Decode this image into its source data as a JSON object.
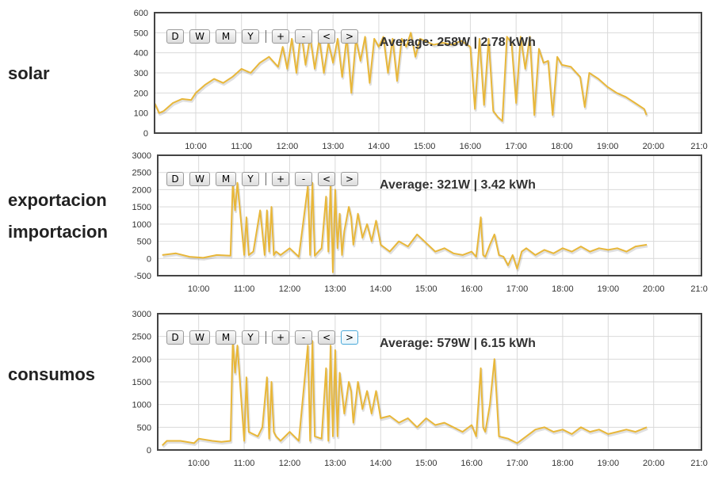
{
  "labels": {
    "solar": "solar",
    "exportacion": "exportacion",
    "importacion": "importacion",
    "consumos": "consumos"
  },
  "controls": {
    "day": "D",
    "week": "W",
    "month": "M",
    "year": "Y",
    "zoom_in": "+",
    "zoom_out": "-",
    "prev": "<",
    "next": ">"
  },
  "colors": {
    "line": "#e8b73a",
    "grid": "#d9d9d9",
    "frame": "#444444",
    "active_button": "#4aa9d9"
  },
  "chart_data": [
    {
      "type": "line",
      "x_unit": "hours",
      "xlim": [
        9.1,
        21.05
      ],
      "xticks": [
        "10:00",
        "11:00",
        "12:00",
        "13:00",
        "14:00",
        "15:00",
        "16:00",
        "17:00",
        "18:00",
        "19:00",
        "20:00",
        "21:0"
      ],
      "ylim": [
        0,
        600
      ],
      "yticks": [
        "0",
        "100",
        "200",
        "300",
        "400",
        "500",
        "600"
      ],
      "average_text": "Average: 258W | 2.78 kWh",
      "x": [
        9.1,
        9.2,
        9.3,
        9.5,
        9.7,
        9.9,
        10.0,
        10.2,
        10.4,
        10.6,
        10.8,
        11.0,
        11.2,
        11.4,
        11.6,
        11.8,
        11.9,
        12.0,
        12.1,
        12.2,
        12.3,
        12.4,
        12.5,
        12.6,
        12.7,
        12.8,
        12.9,
        13.0,
        13.1,
        13.2,
        13.3,
        13.4,
        13.5,
        13.6,
        13.7,
        13.8,
        13.9,
        14.0,
        14.1,
        14.2,
        14.3,
        14.4,
        14.5,
        14.6,
        14.7,
        14.8,
        14.9,
        15.0,
        15.2,
        15.4,
        15.6,
        15.8,
        16.0,
        16.1,
        16.2,
        16.3,
        16.4,
        16.5,
        16.6,
        16.7,
        16.8,
        16.9,
        17.0,
        17.1,
        17.2,
        17.3,
        17.4,
        17.5,
        17.6,
        17.7,
        17.8,
        17.9,
        18.0,
        18.2,
        18.4,
        18.5,
        18.6,
        18.8,
        19.0,
        19.2,
        19.4,
        19.6,
        19.8,
        19.85
      ],
      "y": [
        150,
        100,
        110,
        150,
        170,
        165,
        200,
        240,
        270,
        250,
        280,
        320,
        300,
        350,
        380,
        330,
        430,
        320,
        470,
        300,
        510,
        340,
        480,
        320,
        470,
        300,
        450,
        350,
        470,
        280,
        480,
        200,
        470,
        360,
        480,
        250,
        470,
        430,
        480,
        300,
        470,
        260,
        470,
        430,
        500,
        380,
        470,
        460,
        440,
        450,
        440,
        460,
        430,
        120,
        470,
        140,
        470,
        110,
        80,
        60,
        480,
        450,
        150,
        480,
        320,
        480,
        90,
        420,
        350,
        360,
        90,
        380,
        340,
        330,
        280,
        130,
        300,
        270,
        230,
        200,
        180,
        150,
        120,
        90
      ]
    },
    {
      "type": "line",
      "x_unit": "hours",
      "xlim": [
        9.1,
        21.05
      ],
      "xticks": [
        "10:00",
        "11:00",
        "12:00",
        "13:00",
        "14:00",
        "15:00",
        "16:00",
        "17:00",
        "18:00",
        "19:00",
        "20:00",
        "21:0"
      ],
      "ylim": [
        -500,
        3000
      ],
      "yticks": [
        "-500",
        "0",
        "500",
        "1000",
        "1500",
        "2000",
        "2500",
        "3000"
      ],
      "average_text": "Average: 321W | 3.42 kWh",
      "x": [
        9.2,
        9.5,
        9.8,
        10.1,
        10.4,
        10.7,
        10.75,
        10.8,
        10.85,
        11.0,
        11.05,
        11.1,
        11.2,
        11.35,
        11.45,
        11.5,
        11.55,
        11.6,
        11.65,
        11.7,
        11.8,
        12.0,
        12.2,
        12.4,
        12.45,
        12.5,
        12.55,
        12.7,
        12.8,
        12.85,
        12.9,
        12.95,
        13.0,
        13.05,
        13.1,
        13.15,
        13.2,
        13.3,
        13.35,
        13.4,
        13.5,
        13.6,
        13.7,
        13.8,
        13.9,
        14.0,
        14.2,
        14.4,
        14.6,
        14.8,
        15.0,
        15.2,
        15.4,
        15.6,
        15.8,
        16.0,
        16.1,
        16.2,
        16.25,
        16.3,
        16.4,
        16.5,
        16.6,
        16.7,
        16.8,
        16.9,
        17.0,
        17.1,
        17.2,
        17.4,
        17.6,
        17.8,
        18.0,
        18.2,
        18.4,
        18.6,
        18.8,
        19.0,
        19.2,
        19.4,
        19.6,
        19.85
      ],
      "y": [
        100,
        150,
        50,
        20,
        100,
        80,
        2200,
        1400,
        2200,
        100,
        1200,
        100,
        200,
        1400,
        100,
        1400,
        200,
        1500,
        100,
        200,
        100,
        300,
        50,
        2100,
        100,
        2200,
        80,
        300,
        1800,
        200,
        2200,
        -400,
        2000,
        300,
        1300,
        100,
        800,
        1500,
        1200,
        400,
        1300,
        600,
        1000,
        500,
        1100,
        400,
        200,
        500,
        350,
        700,
        450,
        200,
        300,
        150,
        100,
        200,
        50,
        1200,
        100,
        50,
        400,
        700,
        100,
        50,
        -200,
        100,
        -300,
        200,
        300,
        100,
        250,
        150,
        300,
        200,
        350,
        200,
        300,
        250,
        300,
        200,
        350,
        400
      ]
    },
    {
      "type": "line",
      "x_unit": "hours",
      "xlim": [
        9.1,
        21.05
      ],
      "xticks": [
        "10:00",
        "11:00",
        "12:00",
        "13:00",
        "14:00",
        "15:00",
        "16:00",
        "17:00",
        "18:00",
        "19:00",
        "20:00",
        "21:0"
      ],
      "ylim": [
        0,
        3000
      ],
      "yticks": [
        "0",
        "500",
        "1000",
        "1500",
        "2000",
        "2500",
        "3000"
      ],
      "average_text": "Average: 579W | 6.15 kWh",
      "x": [
        9.2,
        9.3,
        9.6,
        9.9,
        10.0,
        10.3,
        10.5,
        10.7,
        10.75,
        10.8,
        10.85,
        11.0,
        11.05,
        11.1,
        11.3,
        11.4,
        11.5,
        11.55,
        11.6,
        11.65,
        11.7,
        11.8,
        12.0,
        12.2,
        12.4,
        12.45,
        12.5,
        12.55,
        12.7,
        12.8,
        12.85,
        12.9,
        12.95,
        13.0,
        13.05,
        13.1,
        13.2,
        13.3,
        13.35,
        13.4,
        13.5,
        13.6,
        13.7,
        13.8,
        13.9,
        14.0,
        14.2,
        14.4,
        14.6,
        14.8,
        15.0,
        15.2,
        15.4,
        15.6,
        15.8,
        16.0,
        16.1,
        16.2,
        16.25,
        16.3,
        16.4,
        16.5,
        16.6,
        16.8,
        17.0,
        17.2,
        17.4,
        17.6,
        17.8,
        18.0,
        18.2,
        18.4,
        18.6,
        18.8,
        19.0,
        19.2,
        19.4,
        19.6,
        19.85
      ],
      "y": [
        100,
        200,
        200,
        150,
        250,
        200,
        180,
        200,
        2400,
        1700,
        2300,
        200,
        1600,
        400,
        300,
        500,
        1600,
        250,
        1500,
        400,
        300,
        200,
        400,
        200,
        2300,
        200,
        2400,
        300,
        250,
        1800,
        200,
        2300,
        300,
        2200,
        300,
        1700,
        800,
        1500,
        1300,
        600,
        1500,
        900,
        1300,
        800,
        1300,
        700,
        750,
        600,
        700,
        500,
        700,
        550,
        600,
        500,
        400,
        550,
        300,
        1800,
        500,
        400,
        1000,
        2000,
        300,
        250,
        150,
        300,
        450,
        500,
        400,
        450,
        350,
        500,
        400,
        450,
        350,
        400,
        450,
        400,
        500
      ]
    }
  ]
}
